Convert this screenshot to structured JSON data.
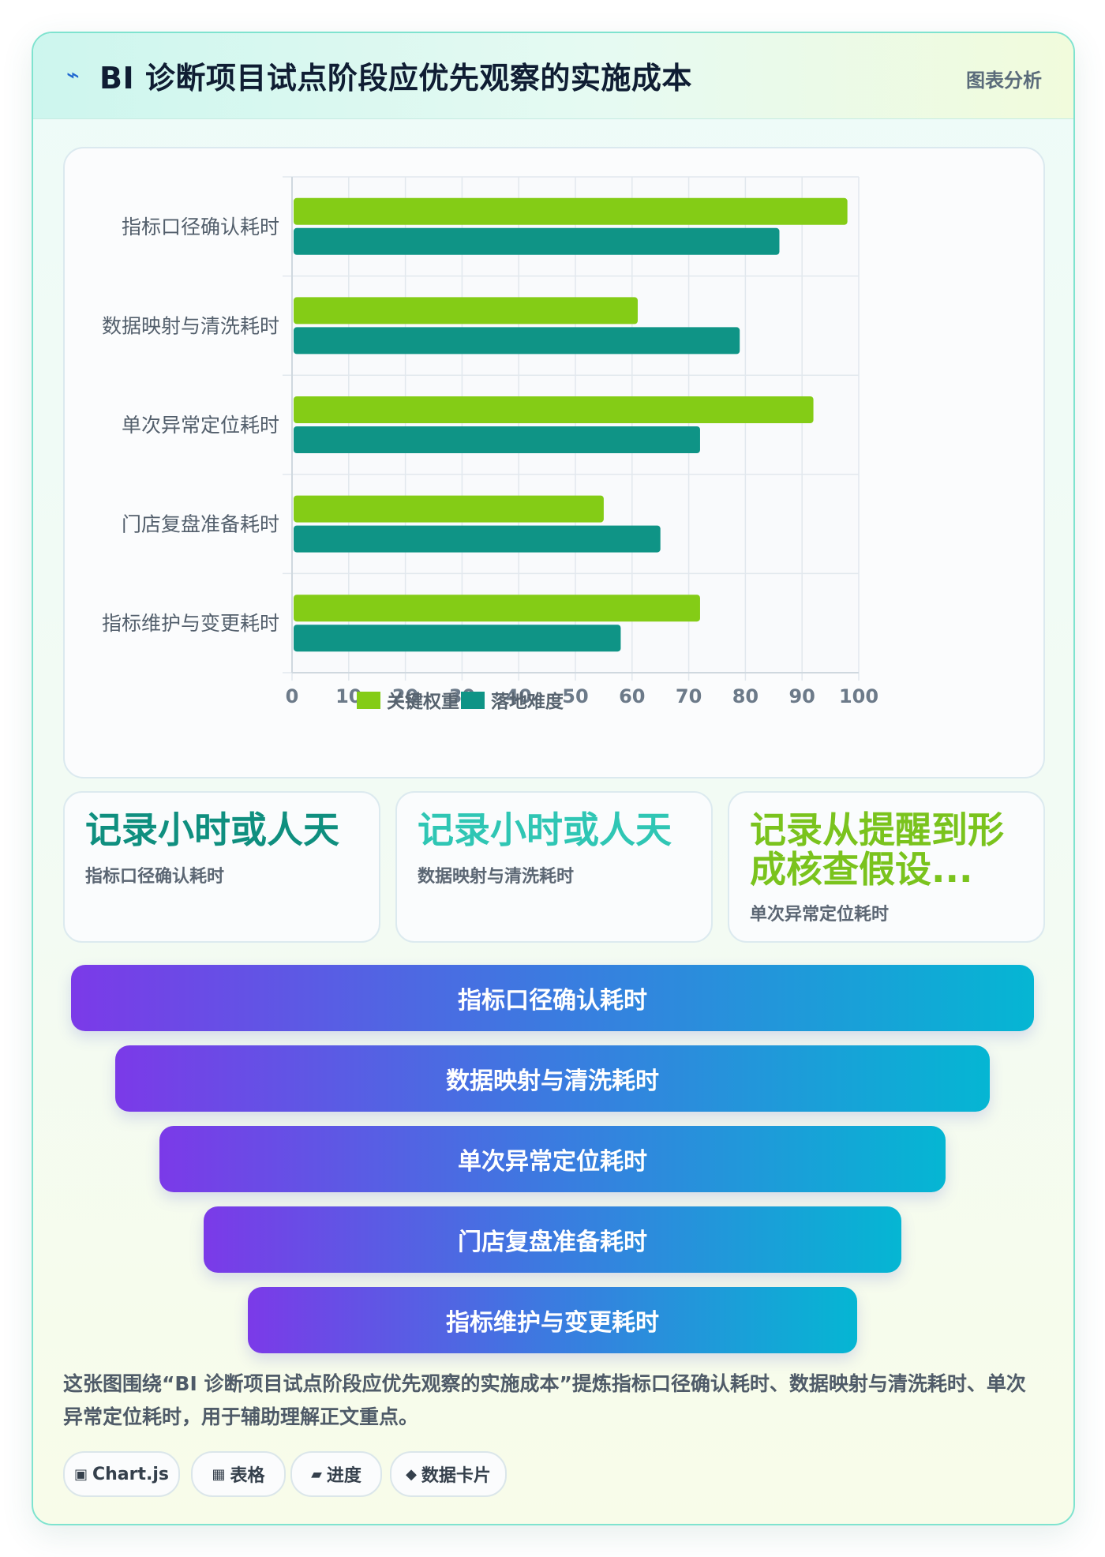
{
  "header": {
    "icon": "lightning-icon",
    "title": "BI 诊断项目试点阶段应优先观察的实施成本",
    "badge": "图表分析"
  },
  "chart_data": {
    "type": "bar",
    "orientation": "horizontal",
    "categories": [
      "指标口径确认耗时",
      "数据映射与清洗耗时",
      "单次异常定位耗时",
      "门店复盘准备耗时",
      "指标维护与变更耗时"
    ],
    "series": [
      {
        "name": "关键权重",
        "values": [
          98,
          61,
          92,
          55,
          72
        ],
        "color": "#84cc16"
      },
      {
        "name": "落地难度",
        "values": [
          86,
          79,
          72,
          65,
          58
        ],
        "color": "#0f9486"
      }
    ],
    "xlim": [
      0,
      100
    ],
    "xticks": [
      0,
      10,
      20,
      30,
      40,
      50,
      60,
      70,
      80,
      90,
      100
    ],
    "grid": true,
    "legend_position": "bottom"
  },
  "kpis": [
    {
      "value": "记录小时或人天",
      "label": "指标口径确认耗时",
      "color": "#0f8f7f"
    },
    {
      "value": "记录小时或人天",
      "label": "数据映射与清洗耗时",
      "color": "#2fc6b4"
    },
    {
      "value": "记录从提醒到形成核查假设...",
      "label": "单次异常定位耗时",
      "color": "#7ac31d"
    }
  ],
  "funnel": [
    "指标口径确认耗时",
    "数据映射与清洗耗时",
    "单次异常定位耗时",
    "门店复盘准备耗时",
    "指标维护与变更耗时"
  ],
  "summary": "这张图围绕“BI 诊断项目试点阶段应优先观察的实施成本”提炼指标口径确认耗时、数据映射与清洗耗时、单次异常定位耗时，用于辅助理解正文重点。",
  "chips": [
    {
      "icon": "▣",
      "label": "Chart.js"
    },
    {
      "icon": "▦",
      "label": "表格"
    },
    {
      "icon": "▰",
      "label": "进度"
    },
    {
      "icon": "◆",
      "label": "数据卡片"
    }
  ]
}
